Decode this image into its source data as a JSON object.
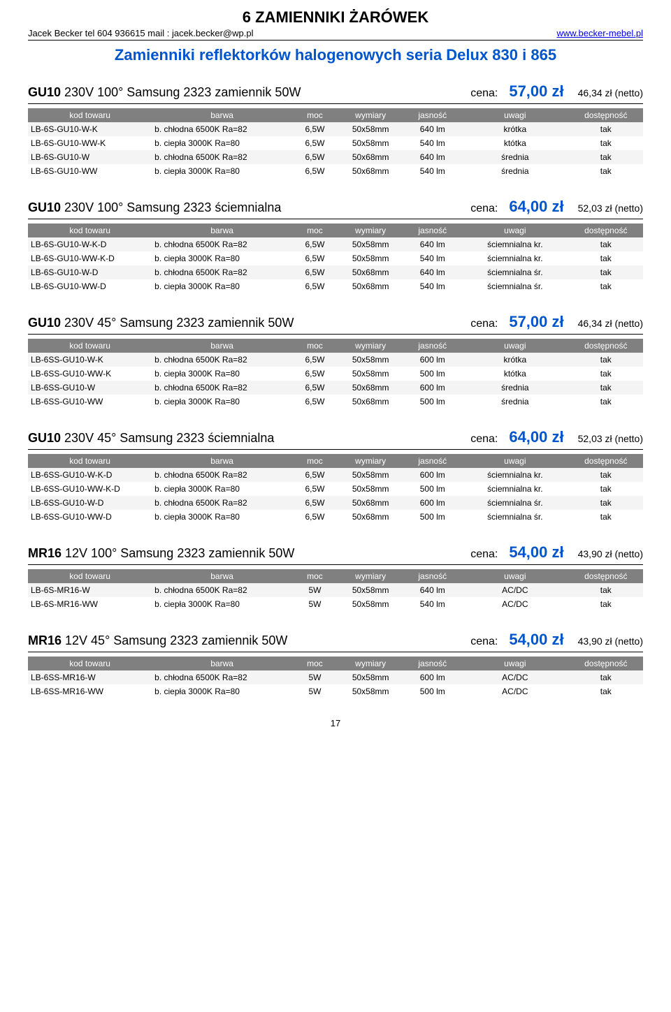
{
  "doc_title": "6 ZAMIENNIKI ŻARÓWEK",
  "header": {
    "left": "Jacek Becker  tel 604 936615 mail : jacek.becker@wp.pl",
    "right": "www.becker-mebel.pl"
  },
  "subtitle": "Zamienniki reflektorków halogenowych seria Delux 830 i 865",
  "columns": [
    "kod towaru",
    "barwa",
    "moc",
    "wymiary",
    "jasność",
    "uwagi",
    "dostępność"
  ],
  "page_number": "17",
  "sections": [
    {
      "title": "GU10 230V 100° Samsung 2323 zamiennik 50W",
      "price_label": "cena:",
      "price_main": "57,00 zł",
      "price_net": "46,34 zł (netto)",
      "rows": [
        [
          "LB-6S-GU10-W-K",
          "b. chłodna 6500K Ra=82",
          "6,5W",
          "50x58mm",
          "640 lm",
          "krótka",
          "tak"
        ],
        [
          "LB-6S-GU10-WW-K",
          "b. ciepła 3000K Ra=80",
          "6,5W",
          "50x58mm",
          "540 lm",
          "któtka",
          "tak"
        ],
        [
          "LB-6S-GU10-W",
          "b. chłodna 6500K Ra=82",
          "6,5W",
          "50x68mm",
          "640 lm",
          "średnia",
          "tak"
        ],
        [
          "LB-6S-GU10-WW",
          "b. ciepła 3000K Ra=80",
          "6,5W",
          "50x68mm",
          "540 lm",
          "średnia",
          "tak"
        ]
      ]
    },
    {
      "title": "GU10 230V 100° Samsung 2323 ściemnialna",
      "price_label": "cena:",
      "price_main": "64,00 zł",
      "price_net": "52,03 zł (netto)",
      "rows": [
        [
          "LB-6S-GU10-W-K-D",
          "b. chłodna 6500K Ra=82",
          "6,5W",
          "50x58mm",
          "640 lm",
          "ściemnialna kr.",
          "tak"
        ],
        [
          "LB-6S-GU10-WW-K-D",
          "b. ciepła 3000K Ra=80",
          "6,5W",
          "50x58mm",
          "540 lm",
          "ściemnialna kr.",
          "tak"
        ],
        [
          "LB-6S-GU10-W-D",
          "b. chłodna 6500K Ra=82",
          "6,5W",
          "50x68mm",
          "640 lm",
          "ściemnialna śr.",
          "tak"
        ],
        [
          "LB-6S-GU10-WW-D",
          "b. ciepła 3000K Ra=80",
          "6,5W",
          "50x68mm",
          "540 lm",
          "ściemnialna śr.",
          "tak"
        ]
      ]
    },
    {
      "title": "GU10 230V 45° Samsung 2323 zamiennik 50W",
      "price_label": "cena:",
      "price_main": "57,00 zł",
      "price_net": "46,34 zł (netto)",
      "rows": [
        [
          "LB-6SS-GU10-W-K",
          "b. chłodna 6500K Ra=82",
          "6,5W",
          "50x58mm",
          "600 lm",
          "krótka",
          "tak"
        ],
        [
          "LB-6SS-GU10-WW-K",
          "b. ciepła 3000K Ra=80",
          "6,5W",
          "50x58mm",
          "500 lm",
          "któtka",
          "tak"
        ],
        [
          "LB-6SS-GU10-W",
          "b. chłodna 6500K Ra=82",
          "6,5W",
          "50x68mm",
          "600 lm",
          "średnia",
          "tak"
        ],
        [
          "LB-6SS-GU10-WW",
          "b. ciepła 3000K Ra=80",
          "6,5W",
          "50x68mm",
          "500 lm",
          "średnia",
          "tak"
        ]
      ]
    },
    {
      "title": "GU10 230V 45° Samsung 2323 ściemnialna",
      "price_label": "cena:",
      "price_main": "64,00 zł",
      "price_net": "52,03 zł (netto)",
      "rows": [
        [
          "LB-6SS-GU10-W-K-D",
          "b. chłodna 6500K Ra=82",
          "6,5W",
          "50x58mm",
          "600 lm",
          "ściemnialna kr.",
          "tak"
        ],
        [
          "LB-6SS-GU10-WW-K-D",
          "b. ciepła 3000K Ra=80",
          "6,5W",
          "50x58mm",
          "500 lm",
          "ściemnialna kr.",
          "tak"
        ],
        [
          "LB-6SS-GU10-W-D",
          "b. chłodna 6500K Ra=82",
          "6,5W",
          "50x68mm",
          "600 lm",
          "ściemnialna śr.",
          "tak"
        ],
        [
          "LB-6SS-GU10-WW-D",
          "b. ciepła 3000K Ra=80",
          "6,5W",
          "50x68mm",
          "500 lm",
          "ściemnialna śr.",
          "tak"
        ]
      ]
    },
    {
      "title": "MR16 12V 100° Samsung 2323 zamiennik 50W",
      "price_label": "cena:",
      "price_main": "54,00 zł",
      "price_net": "43,90 zł (netto)",
      "rows": [
        [
          "LB-6S-MR16-W",
          "b. chłodna 6500K Ra=82",
          "5W",
          "50x58mm",
          "640 lm",
          "AC/DC",
          "tak"
        ],
        [
          "LB-6S-MR16-WW",
          "b. ciepła 3000K Ra=80",
          "5W",
          "50x58mm",
          "540 lm",
          "AC/DC",
          "tak"
        ]
      ]
    },
    {
      "title": "MR16 12V 45° Samsung 2323 zamiennik 50W",
      "price_label": "cena:",
      "price_main": "54,00 zł",
      "price_net": "43,90 zł (netto)",
      "rows": [
        [
          "LB-6SS-MR16-W",
          "b. chłodna 6500K Ra=82",
          "5W",
          "50x58mm",
          "600 lm",
          "AC/DC",
          "tak"
        ],
        [
          "LB-6SS-MR16-WW",
          "b. ciepła 3000K Ra=80",
          "5W",
          "50x58mm",
          "500 lm",
          "AC/DC",
          "tak"
        ]
      ]
    }
  ]
}
